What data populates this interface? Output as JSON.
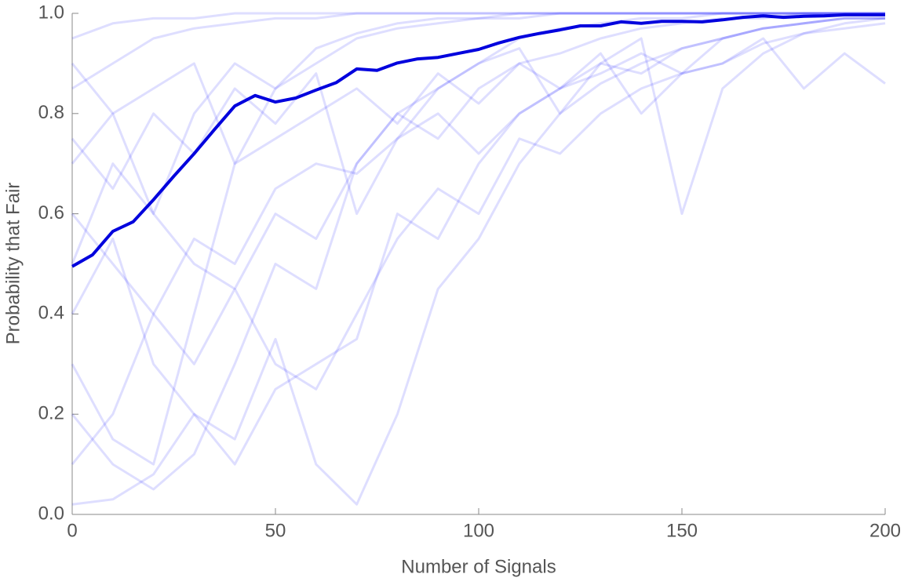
{
  "chart_data": {
    "type": "line",
    "x_label": "Number of Signals",
    "y_label": "Probability that Fair",
    "xlim": [
      0,
      200
    ],
    "xticks": [
      0,
      50,
      100,
      150,
      200
    ],
    "ylim": [
      0,
      1
    ],
    "yticks": [
      {
        "value": 0,
        "label": "0.0"
      },
      0.2,
      0.4,
      0.6,
      0.8,
      {
        "value": 1,
        "label": "1.0"
      }
    ],
    "grid": false,
    "series": [
      {
        "color": "#0000ff",
        "opacity": 0.13,
        "width": 3,
        "x": [
          0,
          10,
          20,
          30,
          40,
          50,
          60,
          70,
          80,
          90,
          100,
          110,
          120,
          130,
          140,
          150,
          160,
          170,
          180,
          190,
          200
        ],
        "values": [
          0.95,
          0.98,
          0.99,
          0.99,
          1,
          1,
          1,
          1,
          1,
          1,
          1,
          1,
          1,
          1,
          1,
          1,
          1,
          1,
          1,
          1,
          1
        ]
      },
      {
        "color": "#0000ff",
        "opacity": 0.13,
        "width": 3,
        "x": [
          0,
          10,
          20,
          30,
          40,
          50,
          60,
          70,
          80,
          90,
          100,
          110,
          120,
          130,
          140,
          150,
          160,
          170,
          180,
          190,
          200
        ],
        "values": [
          0.3,
          0.15,
          0.1,
          0.4,
          0.7,
          0.85,
          0.9,
          0.95,
          0.97,
          0.98,
          0.99,
          0.99,
          1,
          1,
          1,
          1,
          1,
          1,
          1,
          1,
          1
        ]
      },
      {
        "color": "#0000ff",
        "opacity": 0.13,
        "width": 3,
        "x": [
          0,
          10,
          20,
          30,
          40,
          50,
          60,
          70,
          80,
          90,
          100,
          110,
          120,
          130,
          140,
          150,
          160,
          170,
          180,
          190,
          200
        ],
        "values": [
          0.5,
          0.7,
          0.6,
          0.8,
          0.9,
          0.85,
          0.93,
          0.96,
          0.98,
          0.99,
          0.99,
          1,
          1,
          1,
          1,
          1,
          1,
          1,
          1,
          1,
          1
        ]
      },
      {
        "color": "#0000ff",
        "opacity": 0.13,
        "width": 3,
        "x": [
          0,
          10,
          20,
          30,
          40,
          50,
          60,
          70,
          80,
          90,
          100,
          110,
          120,
          130,
          140,
          150,
          160,
          170,
          180,
          190,
          200
        ],
        "values": [
          0.2,
          0.1,
          0.05,
          0.12,
          0.3,
          0.5,
          0.45,
          0.7,
          0.8,
          0.85,
          0.9,
          0.95,
          0.97,
          0.98,
          0.99,
          0.99,
          1,
          1,
          1,
          1,
          1
        ]
      },
      {
        "color": "#0000ff",
        "opacity": 0.13,
        "width": 3,
        "x": [
          0,
          10,
          20,
          30,
          40,
          50,
          60,
          70,
          80,
          90,
          100,
          110,
          120,
          130,
          140,
          150,
          160,
          170,
          180,
          190,
          200
        ],
        "values": [
          0.02,
          0.03,
          0.08,
          0.2,
          0.15,
          0.35,
          0.1,
          0.02,
          0.2,
          0.45,
          0.55,
          0.7,
          0.8,
          0.86,
          0.9,
          0.93,
          0.95,
          0.97,
          0.98,
          0.99,
          0.99
        ]
      },
      {
        "color": "#0000ff",
        "opacity": 0.13,
        "width": 3,
        "x": [
          0,
          10,
          20,
          30,
          40,
          50,
          60,
          70,
          80,
          90,
          100,
          110,
          120,
          130,
          140,
          150,
          160,
          170,
          180,
          190,
          200
        ],
        "values": [
          0.7,
          0.8,
          0.6,
          0.5,
          0.45,
          0.6,
          0.55,
          0.7,
          0.8,
          0.75,
          0.85,
          0.9,
          0.92,
          0.95,
          0.97,
          0.98,
          0.99,
          0.99,
          1,
          1,
          1
        ]
      },
      {
        "color": "#0000ff",
        "opacity": 0.13,
        "width": 3,
        "x": [
          0,
          10,
          20,
          30,
          40,
          50,
          60,
          70,
          80,
          90,
          100,
          110,
          120,
          130,
          140,
          150,
          160,
          170,
          180,
          190,
          200
        ],
        "values": [
          0.6,
          0.5,
          0.4,
          0.3,
          0.45,
          0.3,
          0.25,
          0.4,
          0.55,
          0.65,
          0.6,
          0.75,
          0.72,
          0.8,
          0.85,
          0.88,
          0.9,
          0.94,
          0.96,
          0.97,
          0.98
        ]
      },
      {
        "color": "#0000ff",
        "opacity": 0.13,
        "width": 3,
        "x": [
          0,
          10,
          20,
          30,
          40,
          50,
          60,
          70,
          80,
          90,
          100,
          110,
          120,
          130,
          140,
          150,
          160,
          170,
          180,
          190,
          200
        ],
        "values": [
          0.85,
          0.9,
          0.95,
          0.97,
          0.98,
          0.99,
          0.99,
          1,
          1,
          1,
          1,
          1,
          1,
          1,
          1,
          1,
          1,
          1,
          1,
          1,
          1
        ]
      },
      {
        "color": "#0000ff",
        "opacity": 0.13,
        "width": 3,
        "x": [
          0,
          10,
          20,
          30,
          40,
          50,
          60,
          70,
          80,
          90,
          100,
          110,
          120,
          130,
          140,
          150,
          160,
          170,
          180,
          190,
          200
        ],
        "values": [
          0.4,
          0.55,
          0.3,
          0.2,
          0.1,
          0.25,
          0.3,
          0.35,
          0.6,
          0.55,
          0.7,
          0.8,
          0.85,
          0.88,
          0.92,
          0.88,
          0.95,
          0.97,
          0.98,
          0.99,
          0.99
        ]
      },
      {
        "color": "#0000ff",
        "opacity": 0.13,
        "width": 3,
        "x": [
          0,
          10,
          20,
          30,
          40,
          50,
          60,
          70,
          80,
          90,
          100,
          110,
          120,
          130,
          140,
          150,
          160,
          170,
          180,
          190,
          200
        ],
        "values": [
          0.9,
          0.8,
          0.85,
          0.9,
          0.7,
          0.75,
          0.8,
          0.85,
          0.78,
          0.88,
          0.82,
          0.9,
          0.85,
          0.92,
          0.8,
          0.88,
          0.9,
          0.95,
          0.85,
          0.92,
          0.86
        ]
      },
      {
        "color": "#0000ff",
        "opacity": 0.13,
        "width": 3,
        "x": [
          0,
          10,
          20,
          30,
          40,
          50,
          60,
          70,
          80,
          90,
          100,
          110,
          120,
          130,
          140,
          150,
          160,
          170,
          180,
          190,
          200
        ],
        "values": [
          0.1,
          0.2,
          0.4,
          0.55,
          0.5,
          0.65,
          0.7,
          0.68,
          0.75,
          0.8,
          0.72,
          0.8,
          0.85,
          0.9,
          0.88,
          0.93,
          0.95,
          0.97,
          0.98,
          0.99,
          0.99
        ]
      },
      {
        "color": "#0000ff",
        "opacity": 0.13,
        "width": 3,
        "x": [
          0,
          10,
          20,
          30,
          40,
          50,
          60,
          70,
          80,
          90,
          100,
          110,
          120,
          130,
          140,
          150,
          160,
          170,
          180,
          190,
          200
        ],
        "values": [
          0.75,
          0.65,
          0.8,
          0.72,
          0.85,
          0.78,
          0.88,
          0.6,
          0.75,
          0.85,
          0.9,
          0.93,
          0.8,
          0.9,
          0.95,
          0.6,
          0.85,
          0.92,
          0.96,
          0.98,
          0.99
        ]
      },
      {
        "color": "#0000dd",
        "opacity": 1,
        "width": 4,
        "x": [
          0,
          5,
          10,
          15,
          20,
          25,
          30,
          35,
          40,
          45,
          50,
          55,
          60,
          65,
          70,
          75,
          80,
          85,
          90,
          95,
          100,
          105,
          110,
          115,
          120,
          125,
          130,
          135,
          140,
          145,
          150,
          155,
          160,
          165,
          170,
          175,
          180,
          185,
          190,
          195,
          200
        ],
        "values": [
          0.495,
          0.518,
          0.565,
          0.584,
          0.628,
          0.675,
          0.72,
          0.768,
          0.815,
          0.836,
          0.823,
          0.831,
          0.847,
          0.862,
          0.889,
          0.886,
          0.901,
          0.909,
          0.912,
          0.92,
          0.928,
          0.941,
          0.952,
          0.96,
          0.967,
          0.975,
          0.975,
          0.983,
          0.98,
          0.984,
          0.984,
          0.983,
          0.987,
          0.992,
          0.995,
          0.992,
          0.994,
          0.995,
          0.997,
          0.997,
          0.997
        ]
      }
    ]
  }
}
